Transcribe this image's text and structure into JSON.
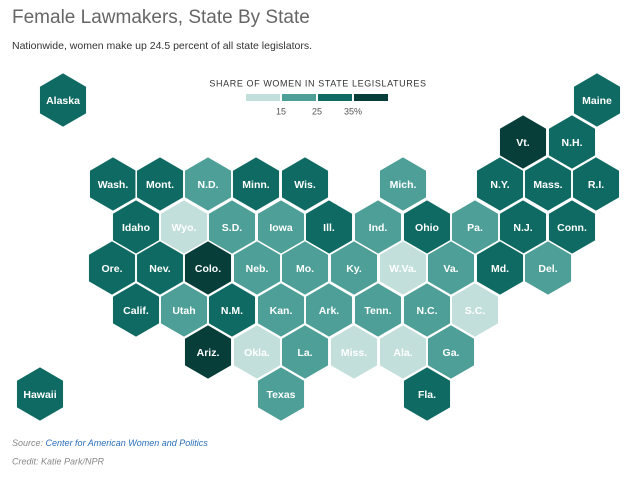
{
  "chart_data": {
    "type": "hexmap",
    "title": "Female Lawmakers, State By State",
    "subtitle": "Nationwide, women make up 24.5 percent of all state legislators.",
    "legend": {
      "title": "SHARE OF WOMEN IN STATE LEGISLATURES",
      "colors": [
        "#c3dfdc",
        "#4d9f98",
        "#0f6a63",
        "#073e3a"
      ],
      "ticks": [
        15,
        25,
        {
          "value": 35,
          "label": "35%"
        }
      ]
    },
    "states": [
      {
        "label": "Alaska",
        "color": "#0f6a63"
      },
      {
        "label": "Maine",
        "color": "#0f6a63"
      },
      {
        "label": "Vt.",
        "color": "#073e3a"
      },
      {
        "label": "N.H.",
        "color": "#0f6a63"
      },
      {
        "label": "Wash.",
        "color": "#0f6a63"
      },
      {
        "label": "Mont.",
        "color": "#0f6a63"
      },
      {
        "label": "N.D.",
        "color": "#4d9f98"
      },
      {
        "label": "Minn.",
        "color": "#0f6a63"
      },
      {
        "label": "Wis.",
        "color": "#0f6a63"
      },
      {
        "label": "Mich.",
        "color": "#4d9f98"
      },
      {
        "label": "N.Y.",
        "color": "#0f6a63"
      },
      {
        "label": "Mass.",
        "color": "#0f6a63"
      },
      {
        "label": "R.I.",
        "color": "#0f6a63"
      },
      {
        "label": "Idaho",
        "color": "#0f6a63"
      },
      {
        "label": "Wyo.",
        "color": "#c3dfdc"
      },
      {
        "label": "S.D.",
        "color": "#4d9f98"
      },
      {
        "label": "Iowa",
        "color": "#4d9f98"
      },
      {
        "label": "Ill.",
        "color": "#0f6a63"
      },
      {
        "label": "Ind.",
        "color": "#4d9f98"
      },
      {
        "label": "Ohio",
        "color": "#0f6a63"
      },
      {
        "label": "Pa.",
        "color": "#4d9f98"
      },
      {
        "label": "N.J.",
        "color": "#0f6a63"
      },
      {
        "label": "Conn.",
        "color": "#0f6a63"
      },
      {
        "label": "Ore.",
        "color": "#0f6a63"
      },
      {
        "label": "Nev.",
        "color": "#0f6a63"
      },
      {
        "label": "Colo.",
        "color": "#073e3a"
      },
      {
        "label": "Neb.",
        "color": "#4d9f98"
      },
      {
        "label": "Mo.",
        "color": "#4d9f98"
      },
      {
        "label": "Ky.",
        "color": "#4d9f98"
      },
      {
        "label": "W.Va.",
        "color": "#c3dfdc"
      },
      {
        "label": "Va.",
        "color": "#4d9f98"
      },
      {
        "label": "Md.",
        "color": "#0f6a63"
      },
      {
        "label": "Del.",
        "color": "#4d9f98"
      },
      {
        "label": "Calif.",
        "color": "#0f6a63"
      },
      {
        "label": "Utah",
        "color": "#4d9f98"
      },
      {
        "label": "N.M.",
        "color": "#0f6a63"
      },
      {
        "label": "Kan.",
        "color": "#4d9f98"
      },
      {
        "label": "Ark.",
        "color": "#4d9f98"
      },
      {
        "label": "Tenn.",
        "color": "#4d9f98"
      },
      {
        "label": "N.C.",
        "color": "#4d9f98"
      },
      {
        "label": "S.C.",
        "color": "#c3dfdc"
      },
      {
        "label": "Ariz.",
        "color": "#073e3a"
      },
      {
        "label": "Okla.",
        "color": "#c3dfdc"
      },
      {
        "label": "La.",
        "color": "#4d9f98"
      },
      {
        "label": "Miss.",
        "color": "#c3dfdc"
      },
      {
        "label": "Ala.",
        "color": "#c3dfdc"
      },
      {
        "label": "Ga.",
        "color": "#4d9f98"
      },
      {
        "label": "Texas",
        "color": "#4d9f98"
      },
      {
        "label": "Fla.",
        "color": "#0f6a63"
      },
      {
        "label": "Hawaii",
        "color": "#0f6a63"
      }
    ],
    "source": {
      "label": "Source:",
      "link": "Center for American Women and Politics"
    },
    "credit": "Credit: Katie Park/NPR"
  }
}
